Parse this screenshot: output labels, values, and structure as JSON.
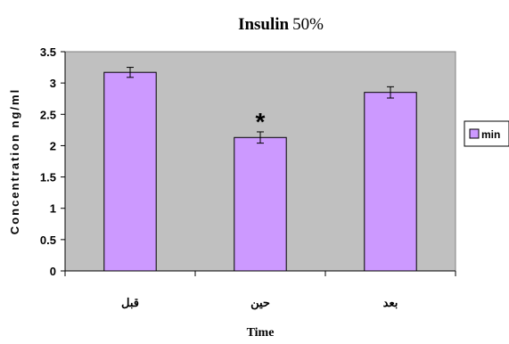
{
  "chart_data": {
    "type": "bar",
    "title_bold": "Insulin",
    "title_rest": "50%",
    "xlabel": "Time",
    "ylabel": "Concentration ng/ml",
    "ylim": [
      0,
      3.5
    ],
    "yticks": [
      0,
      0.5,
      1,
      1.5,
      2,
      2.5,
      3,
      3.5
    ],
    "ytick_labels": [
      "0",
      "0.5",
      "1",
      "1.5",
      "2",
      "2.5",
      "3",
      "3.5"
    ],
    "categories": [
      "قبل",
      "حين",
      "بعد"
    ],
    "series": [
      {
        "name": "min",
        "values": [
          3.17,
          2.13,
          2.85
        ],
        "errors": [
          0.08,
          0.09,
          0.09
        ],
        "color": "#cc99ff"
      }
    ],
    "annotations": [
      {
        "category_index": 1,
        "text": "*"
      }
    ],
    "plot_background": "#c0c0c0",
    "grid": false,
    "legend_position": "right"
  }
}
